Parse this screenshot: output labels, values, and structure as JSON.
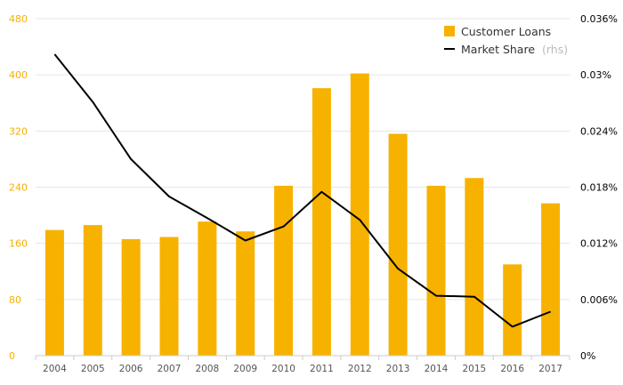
{
  "chart_data": {
    "type": "bar+line",
    "categories": [
      "2004",
      "2005",
      "2006",
      "2007",
      "2008",
      "2009",
      "2010",
      "2011",
      "2012",
      "2013",
      "2014",
      "2015",
      "2016",
      "2017"
    ],
    "series": [
      {
        "name": "Customer Loans",
        "type": "bar",
        "axis": "left",
        "color": "#f7b200",
        "values": [
          179,
          186,
          166,
          169,
          191,
          177,
          242,
          381,
          402,
          316,
          242,
          253,
          130,
          217
        ]
      },
      {
        "name": "Market Share",
        "name_suffix": "(rhs)",
        "type": "line",
        "axis": "right",
        "color": "#000000",
        "values": [
          0.0322,
          0.0271,
          0.021,
          0.017,
          0.0147,
          0.0123,
          0.0138,
          0.0175,
          0.0145,
          0.0093,
          0.0064,
          0.0063,
          0.0031,
          0.0047
        ]
      }
    ],
    "y_left": {
      "ylim": [
        0,
        480
      ],
      "ticks": [
        0,
        80,
        160,
        240,
        320,
        400,
        480
      ],
      "tick_labels": [
        "0",
        "80",
        "160",
        "240",
        "320",
        "400",
        "480"
      ],
      "color": "#f5b000"
    },
    "y_right": {
      "ylim": [
        0,
        0.036
      ],
      "ticks": [
        0,
        0.006,
        0.012,
        0.018,
        0.024,
        0.03,
        0.036
      ],
      "tick_labels": [
        "0%",
        "0.006%",
        "0.012%",
        "0.018%",
        "0.024%",
        "0.03%",
        "0.036%"
      ]
    },
    "grid": true,
    "legend": "top-right"
  }
}
